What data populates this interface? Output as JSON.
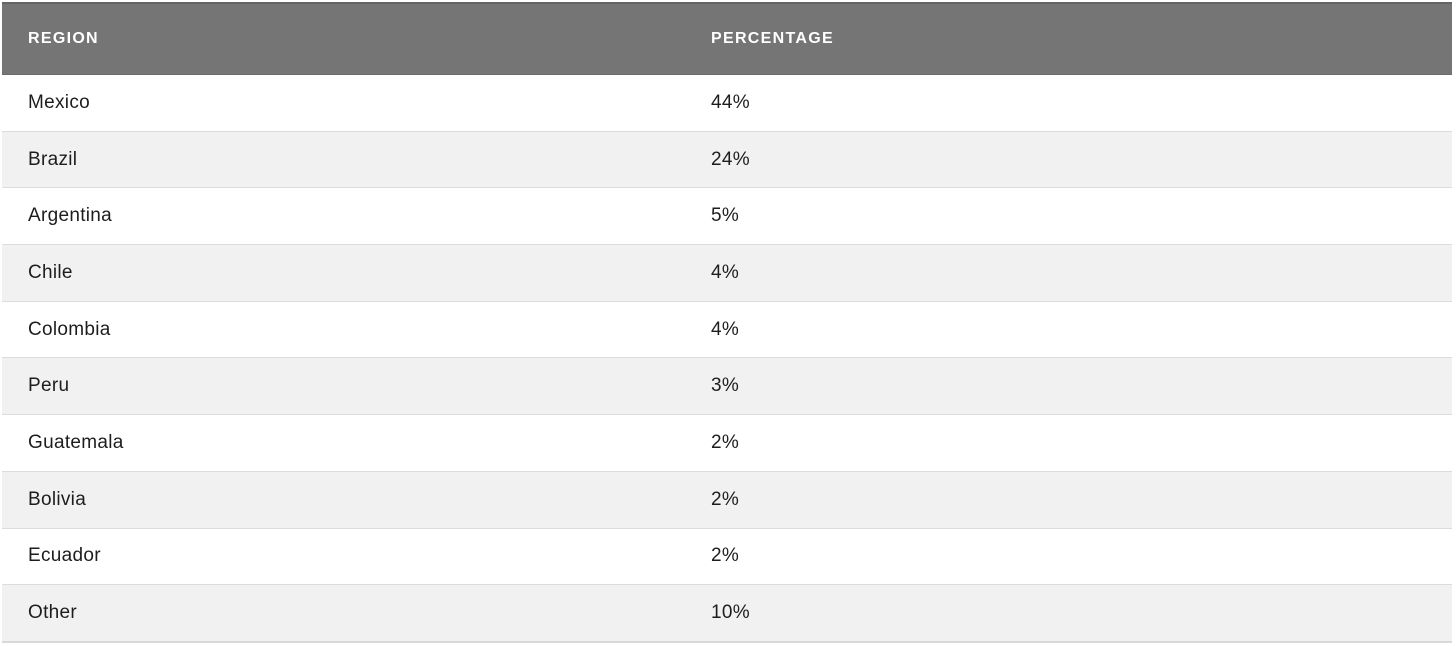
{
  "table": {
    "columns": [
      {
        "key": "region",
        "label": "REGION"
      },
      {
        "key": "percentage",
        "label": "PERCENTAGE"
      }
    ],
    "rows": [
      {
        "region": "Mexico",
        "percentage": "44%"
      },
      {
        "region": "Brazil",
        "percentage": "24%"
      },
      {
        "region": "Argentina",
        "percentage": "5%"
      },
      {
        "region": "Chile",
        "percentage": "4%"
      },
      {
        "region": "Colombia",
        "percentage": "4%"
      },
      {
        "region": "Peru",
        "percentage": "3%"
      },
      {
        "region": "Guatemala",
        "percentage": "2%"
      },
      {
        "region": "Bolivia",
        "percentage": "2%"
      },
      {
        "region": "Ecuador",
        "percentage": "2%"
      },
      {
        "region": "Other",
        "percentage": "10%"
      }
    ],
    "colors": {
      "header_bg": "#757575",
      "header_text": "#ffffff",
      "row_bg": "#ffffff",
      "row_alt_bg": "#f1f1f1",
      "divider": "#dcdcdc",
      "text": "#1d1d1d"
    }
  },
  "chart_data": {
    "type": "table",
    "title": "",
    "columns": [
      "REGION",
      "PERCENTAGE"
    ],
    "categories": [
      "Mexico",
      "Brazil",
      "Argentina",
      "Chile",
      "Colombia",
      "Peru",
      "Guatemala",
      "Bolivia",
      "Ecuador",
      "Other"
    ],
    "values": [
      44,
      24,
      5,
      4,
      4,
      3,
      2,
      2,
      2,
      10
    ],
    "value_unit": "%"
  }
}
